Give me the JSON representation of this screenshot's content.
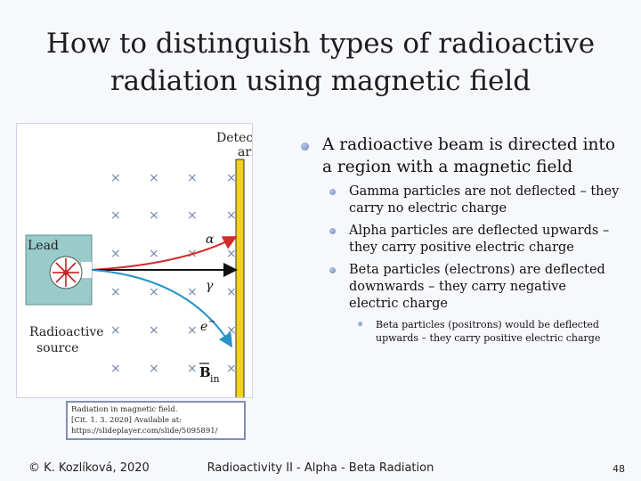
{
  "title": {
    "line1": "How to distinguish types of radioactive",
    "line2": "radiation using magnetic field"
  },
  "figure": {
    "detector_line1": "Detector",
    "detector_line2": "array",
    "lead_label": "Lead",
    "source_line1": "Radioactive",
    "source_line2": "source",
    "alpha": "α",
    "gamma": "γ",
    "beta": "e",
    "beta_sup": "−",
    "field_symbol": "B",
    "field_sub": "in",
    "field_mark": "×",
    "colors": {
      "detector": "#f2d21a",
      "lead": "#98cbc9",
      "alpha_path": "#d12d2a",
      "beta_path": "#2694c9",
      "gamma_path": "#111111"
    }
  },
  "caption": {
    "line1": "Radiation in magnetic field.",
    "line2": "[Cit. 1. 3. 2020] Available at:",
    "line3": "https://slideplayer.com/slide/5095891/"
  },
  "bullets": {
    "main": "A radioactive beam is directed into a region with a magnetic field",
    "sub": [
      "Gamma particles are not deflected – they carry no electric charge",
      "Alpha particles are deflected upwards – they carry positive electric charge",
      "Beta particles (electrons) are deflected downwards – they carry negative electric charge"
    ],
    "subsub": "Beta particles (positrons) would be deflected upwards – they carry positive electric charge"
  },
  "footer": {
    "author": "© K. Kozlíková, 2020",
    "center": "Radioactivity II - Alpha - Beta Radiation",
    "page": "48"
  }
}
